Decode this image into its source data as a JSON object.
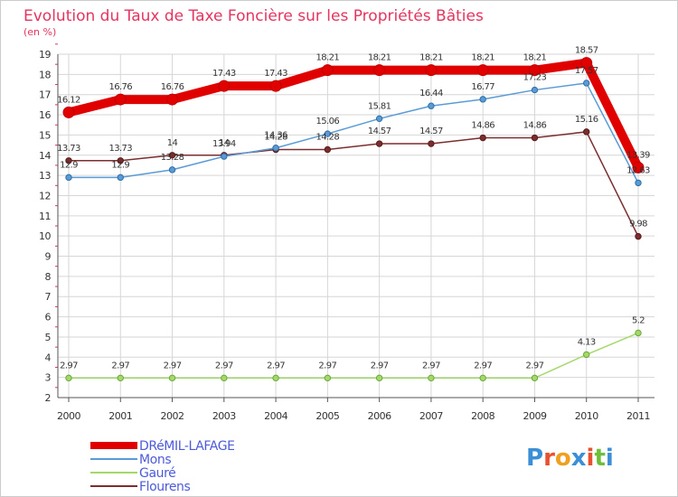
{
  "chart_data": {
    "type": "line",
    "title": "Evolution du Taux de Taxe Foncière sur les Propriétés Bâties",
    "subtitle": "(en %)",
    "xlabel": "",
    "ylabel": "",
    "x": [
      "2000",
      "2001",
      "2002",
      "2003",
      "2004",
      "2005",
      "2006",
      "2007",
      "2008",
      "2009",
      "2010",
      "2011"
    ],
    "ylim": [
      2,
      19
    ],
    "yticks": [
      2,
      3,
      4,
      5,
      6,
      7,
      8,
      9,
      10,
      11,
      12,
      13,
      14,
      15,
      16,
      17,
      18,
      19
    ],
    "grid": true,
    "legend_position": "bottom-left",
    "series": [
      {
        "name": "DRéMIL-LAFAGE",
        "color": "#e00000",
        "width": 10,
        "values": [
          16.12,
          16.76,
          16.76,
          17.43,
          17.43,
          18.21,
          18.21,
          18.21,
          18.21,
          18.21,
          18.57,
          13.39
        ],
        "labels": [
          "16.12",
          "16.76",
          "16.76",
          "17.43",
          "17.43",
          "18.21",
          "18.21",
          "18.21",
          "18.21",
          "18.21",
          "18.57",
          "13.39"
        ]
      },
      {
        "name": "Mons",
        "color": "#5b9bd5",
        "width": 1.5,
        "values": [
          12.9,
          12.9,
          13.28,
          13.94,
          14.36,
          15.06,
          15.81,
          16.44,
          16.77,
          17.23,
          17.57,
          12.63
        ],
        "labels": [
          "12.9",
          "12.9",
          "13.28",
          "13.94",
          "14.36",
          "15.06",
          "15.81",
          "16.44",
          "16.77",
          "17.23",
          "17.57",
          "12.63"
        ]
      },
      {
        "name": "Gauré",
        "color": "#a5d86b",
        "width": 1.5,
        "values": [
          2.97,
          2.97,
          2.97,
          2.97,
          2.97,
          2.97,
          2.97,
          2.97,
          2.97,
          2.97,
          4.13,
          5.2
        ],
        "labels": [
          "2.97",
          "2.97",
          "2.97",
          "2.97",
          "2.97",
          "2.97",
          "2.97",
          "2.97",
          "2.97",
          "2.97",
          "4.13",
          "5.2"
        ]
      },
      {
        "name": "Flourens",
        "color": "#7a2e2e",
        "width": 1.5,
        "values": [
          13.73,
          13.73,
          14,
          14,
          14.28,
          14.28,
          14.57,
          14.57,
          14.86,
          14.86,
          15.16,
          9.98
        ],
        "labels": [
          "13.73",
          "13.73",
          "14",
          "14",
          "14.28",
          "14.28",
          "14.57",
          "14.57",
          "14.86",
          "14.86",
          "15.16",
          "9.98"
        ]
      }
    ]
  },
  "logo": {
    "text": "Proxiti",
    "letters": [
      "P",
      "r",
      "o",
      "x",
      "i",
      "t",
      "i"
    ],
    "colors": [
      "#3b8fd6",
      "#e8502e",
      "#f0a020",
      "#3b8fd6",
      "#e8502e",
      "#6cbf3a",
      "#3b8fd6"
    ]
  }
}
